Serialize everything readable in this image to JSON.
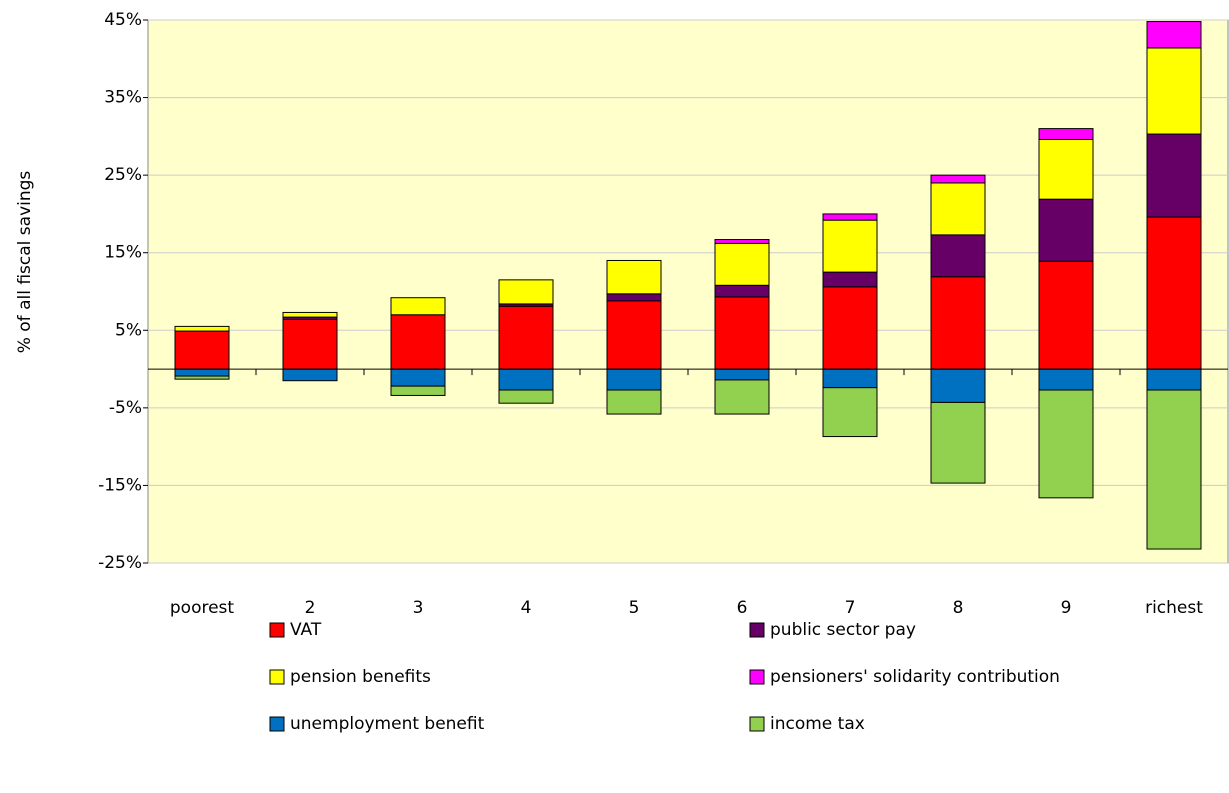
{
  "chart_data": {
    "type": "bar",
    "stacked": true,
    "y_label": "% of all fiscal savings",
    "categories": [
      "poorest",
      "2",
      "3",
      "4",
      "5",
      "6",
      "7",
      "8",
      "9",
      "richest"
    ],
    "series": [
      {
        "name": "VAT",
        "color": "#ff0000",
        "values": [
          4.9,
          6.4,
          7.0,
          8.1,
          8.8,
          9.3,
          10.6,
          11.9,
          13.9,
          19.6
        ]
      },
      {
        "name": "public sector pay",
        "color": "#660066",
        "values": [
          0,
          0.3,
          0,
          0.3,
          0.9,
          1.5,
          1.9,
          5.4,
          8.0,
          10.7
        ]
      },
      {
        "name": "pension benefits",
        "color": "#ffff00",
        "values": [
          0.6,
          0.6,
          2.2,
          3.1,
          4.3,
          5.4,
          6.7,
          6.7,
          7.7,
          11.1
        ]
      },
      {
        "name": "pensioners' solidarity contribution",
        "color": "#ff00ff",
        "values": [
          0,
          0,
          0,
          0,
          0,
          0.5,
          0.8,
          1.0,
          1.4,
          3.4
        ]
      },
      {
        "name": "unemployment benefit",
        "color": "#0070c0",
        "values": [
          -0.9,
          -1.5,
          -2.2,
          -2.7,
          -2.7,
          -1.4,
          -2.4,
          -4.3,
          -2.7,
          -2.7
        ]
      },
      {
        "name": "income tax",
        "color": "#92d050",
        "values": [
          -0.4,
          0,
          -1.2,
          -1.7,
          -3.1,
          -4.4,
          -6.3,
          -10.4,
          -13.9,
          -20.5
        ]
      }
    ],
    "ylim": [
      -25,
      45
    ],
    "yticks": [
      {
        "value": -25,
        "label": "-25%"
      },
      {
        "value": -15,
        "label": "-15%"
      },
      {
        "value": -5,
        "label": "-5%"
      },
      {
        "value": 5,
        "label": "5%"
      },
      {
        "value": 15,
        "label": "15%"
      },
      {
        "value": 25,
        "label": "25%"
      },
      {
        "value": 35,
        "label": "35%"
      },
      {
        "value": 45,
        "label": "45%"
      }
    ],
    "grid": true,
    "plot_background": "#ffffcc"
  }
}
